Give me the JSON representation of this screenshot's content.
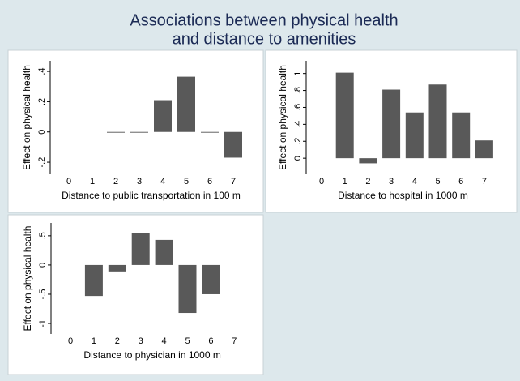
{
  "title": [
    "Associations between physical health",
    "and distance to amenities"
  ],
  "chart_data": [
    {
      "type": "bar",
      "xlabel": "Distance to public transportation in 100 m",
      "ylabel": "Effect on physical health",
      "categories": [
        "0",
        "1",
        "2",
        "3",
        "4",
        "5",
        "6",
        "7"
      ],
      "values": [
        0,
        0,
        -0.005,
        -0.005,
        0.21,
        0.365,
        -0.005,
        -0.17
      ],
      "color": "#595959",
      "ylim": [
        -0.28,
        0.47
      ],
      "yticks": [
        {
          "value": -0.2,
          "label": "-.2"
        },
        0,
        {
          "value": 0.2,
          "label": ".2"
        },
        {
          "value": 0.4,
          "label": ".4"
        }
      ]
    },
    {
      "type": "bar",
      "xlabel": "Distance to hospital in 1000 m",
      "ylabel": "Effect on physical health",
      "categories": [
        "0",
        "1",
        "2",
        "3",
        "4",
        "5",
        "6",
        "7"
      ],
      "values": [
        0,
        1.01,
        -0.06,
        0.81,
        0.54,
        0.87,
        0.54,
        0.21
      ],
      "color": "#595959",
      "ylim": [
        -0.19,
        1.15
      ],
      "yticks": [
        0,
        {
          "value": 0.2,
          "label": ".2"
        },
        {
          "value": 0.4,
          "label": ".4"
        },
        {
          "value": 0.6,
          "label": ".6"
        },
        {
          "value": 0.8,
          "label": ".8"
        },
        1
      ]
    },
    {
      "type": "bar",
      "xlabel": "Distance to physician in 1000 m",
      "ylabel": "Effect on physical health",
      "categories": [
        "0",
        "1",
        "2",
        "3",
        "4",
        "5",
        "6",
        "7"
      ],
      "values": [
        0,
        -0.53,
        -0.11,
        0.54,
        0.43,
        -0.82,
        -0.5,
        0
      ],
      "color": "#595959",
      "ylim": [
        -1.18,
        0.72
      ],
      "yticks": [
        -1,
        {
          "value": -0.5,
          "label": "-.5"
        },
        0,
        {
          "value": 0.5,
          "label": ".5"
        }
      ]
    }
  ]
}
